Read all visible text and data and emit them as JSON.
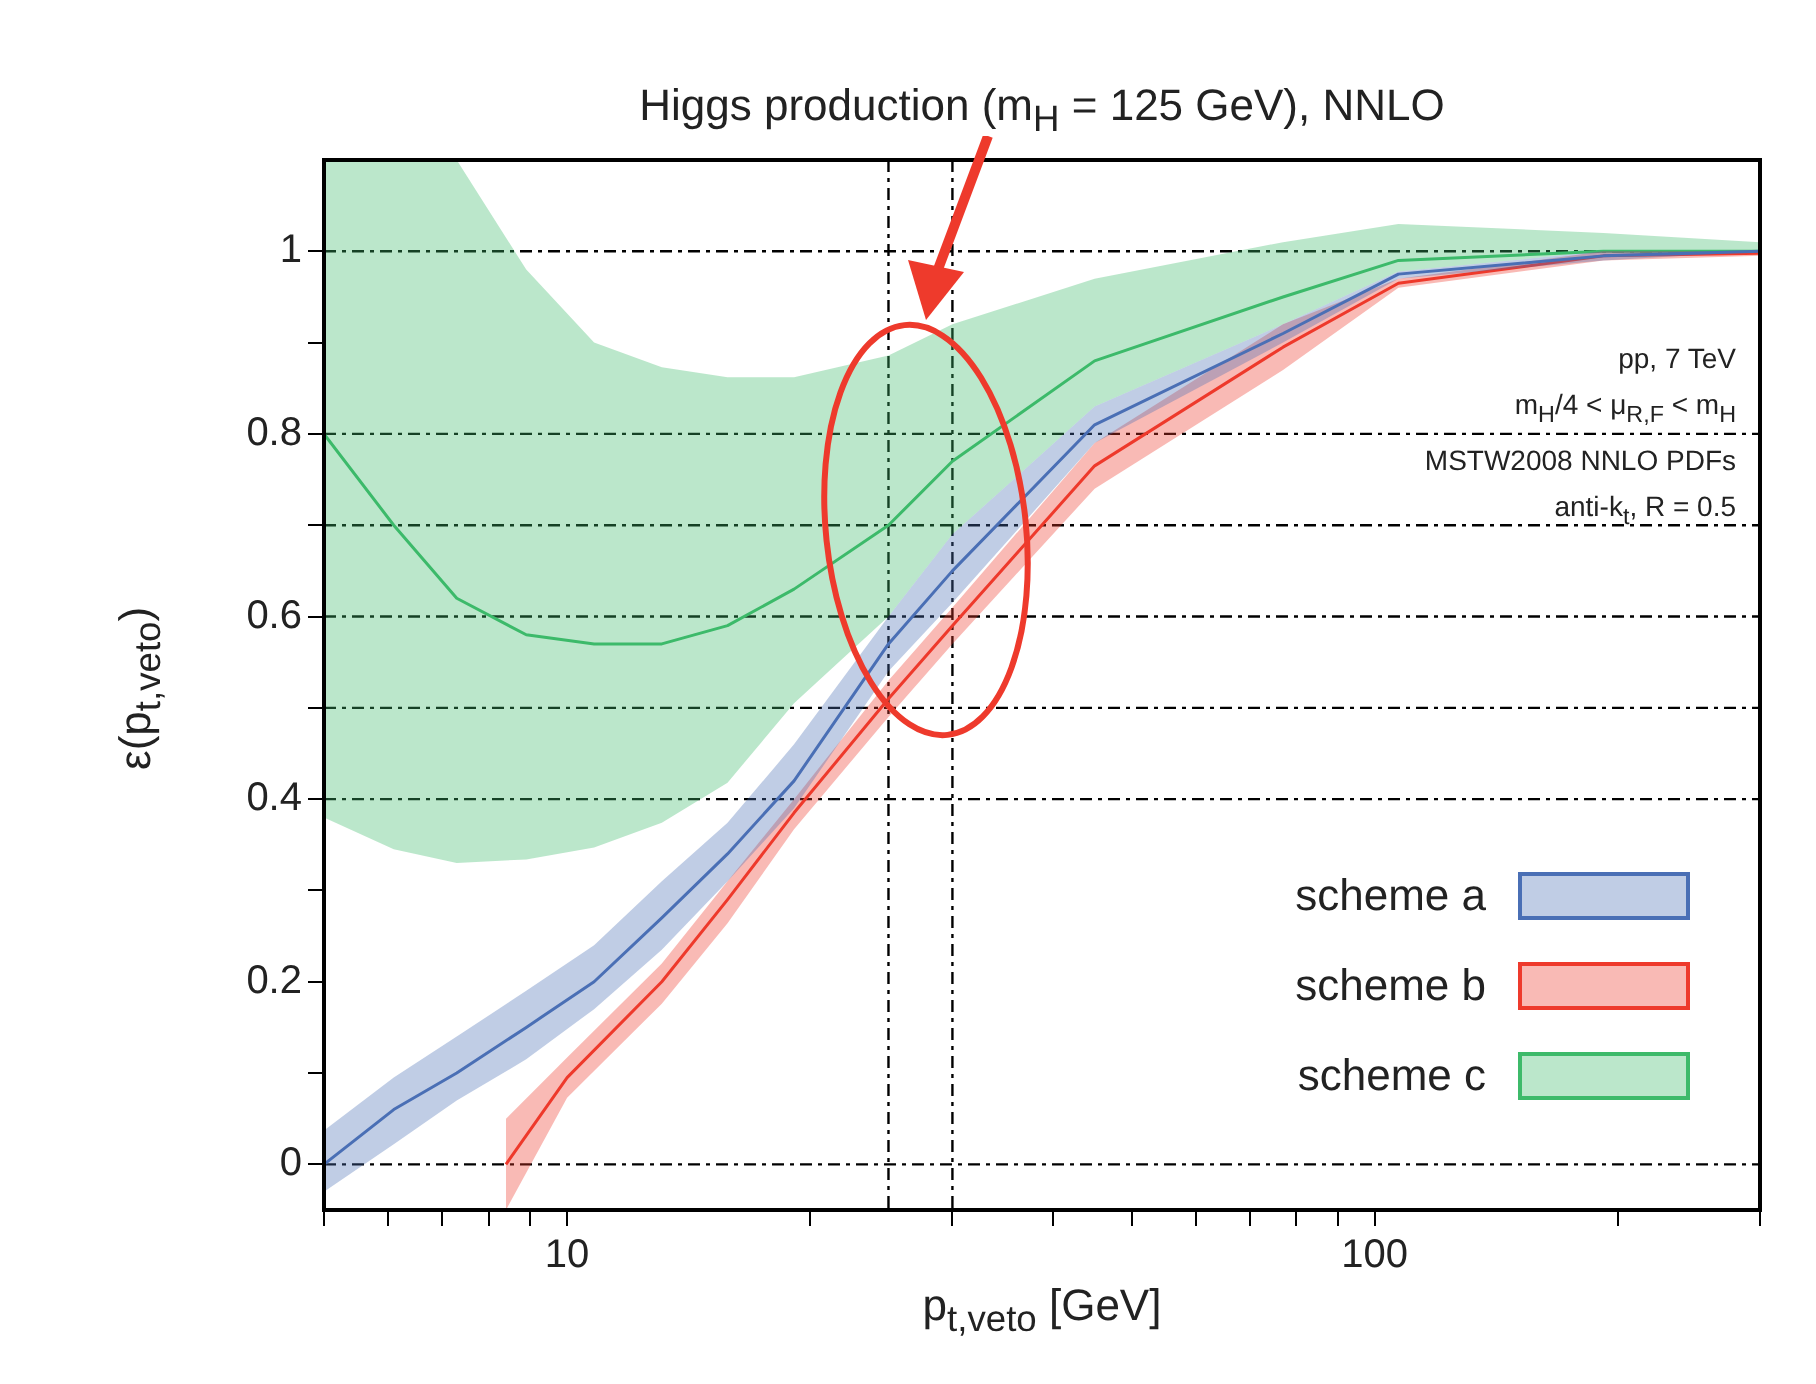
{
  "chart_data": {
    "type": "line",
    "title": "Higgs production (m$_{H}$ = 125 GeV), NNLO",
    "xlabel": "p$_{t,veto}$ [GeV]",
    "ylabel": "ε(p$_{t,veto}$)",
    "annotations": [
      "pp, 7 TeV",
      "m$_{H}$/4 < μ$_{R,F}$ < m$_{H}$",
      "MSTW2008 NNLO PDFs",
      "anti-k$_{t}$, R = 0.5"
    ],
    "log": "x",
    "xlim": [
      5,
      300
    ],
    "ylim": [
      -0.05,
      1.1
    ],
    "xticks": [
      {
        "value": 5,
        "label": null
      },
      {
        "value": 6,
        "label": null
      },
      {
        "value": 7,
        "label": null
      },
      {
        "value": 8,
        "label": null
      },
      {
        "value": 9,
        "label": null
      },
      10,
      {
        "value": 20,
        "label": null
      },
      {
        "value": 30,
        "label": null
      },
      {
        "value": 40,
        "label": null
      },
      {
        "value": 50,
        "label": null
      },
      {
        "value": 60,
        "label": null
      },
      {
        "value": 70,
        "label": null
      },
      {
        "value": 80,
        "label": null
      },
      {
        "value": 90,
        "label": null
      },
      100,
      {
        "value": 200,
        "label": null
      },
      {
        "value": 300,
        "label": null
      }
    ],
    "yticks": [
      0,
      {
        "value": 0.1,
        "label": null
      },
      0.2,
      {
        "value": 0.3,
        "label": null
      },
      0.4,
      {
        "value": 0.5,
        "label": null
      },
      0.6,
      {
        "value": 0.7,
        "label": null
      },
      0.8,
      {
        "value": 0.9,
        "label": null
      },
      1
    ],
    "x": [
      5,
      6.1,
      7.3,
      8.9,
      10.8,
      13.1,
      15.8,
      19.1,
      25,
      30,
      45,
      77,
      107,
      192,
      300
    ],
    "series": [
      {
        "name": "scheme a",
        "color": "#4a6fb5",
        "values": [
          0.0,
          0.06,
          0.1,
          0.15,
          0.2,
          0.27,
          0.34,
          0.42,
          0.57,
          0.65,
          0.81,
          0.91,
          0.975,
          0.995,
          1.0
        ],
        "lower": [
          -0.03,
          0.022,
          0.07,
          0.115,
          0.17,
          0.235,
          0.31,
          0.39,
          0.54,
          0.615,
          0.79,
          0.9,
          0.97,
          0.99,
          1.0
        ],
        "upper": [
          0.037,
          0.095,
          0.14,
          0.19,
          0.24,
          0.31,
          0.374,
          0.46,
          0.6,
          0.69,
          0.83,
          0.92,
          0.978,
          1.0,
          1.0
        ]
      },
      {
        "name": "scheme b",
        "color": "#ee3a2c",
        "x": [
          8.4,
          10,
          13.1,
          15.8,
          19.1,
          25,
          30,
          45,
          77,
          107,
          192,
          300
        ],
        "values": [
          0.0,
          0.095,
          0.2,
          0.29,
          0.385,
          0.51,
          0.59,
          0.765,
          0.895,
          0.965,
          0.995,
          0.998
        ],
        "lower": [
          -0.05,
          0.073,
          0.176,
          0.264,
          0.367,
          0.49,
          0.57,
          0.74,
          0.87,
          0.96,
          0.99,
          0.995
        ],
        "upper": [
          0.05,
          0.117,
          0.22,
          0.31,
          0.4,
          0.53,
          0.61,
          0.79,
          0.92,
          0.97,
          1.0,
          1.0
        ]
      },
      {
        "name": "scheme c",
        "color": "#3dba6a",
        "values": [
          0.8,
          0.7,
          0.62,
          0.58,
          0.57,
          0.57,
          0.59,
          0.63,
          0.7,
          0.77,
          0.88,
          0.95,
          0.99,
          1.0,
          1.0
        ],
        "lower": [
          0.38,
          0.345,
          0.33,
          0.334,
          0.347,
          0.374,
          0.418,
          0.505,
          0.6,
          0.69,
          0.83,
          0.92,
          0.978,
          1.0,
          1.0
        ],
        "upper": [
          1.1,
          1.1,
          1.1,
          0.98,
          0.9,
          0.873,
          0.862,
          0.862,
          0.886,
          0.92,
          0.97,
          1.01,
          1.03,
          1.02,
          1.01
        ]
      }
    ],
    "ref_lines": [
      {
        "axis": "y",
        "value": 0
      },
      {
        "axis": "y",
        "value": 0.4
      },
      {
        "axis": "y",
        "value": 0.5
      },
      {
        "axis": "y",
        "value": 0.6
      },
      {
        "axis": "y",
        "value": 0.7
      },
      {
        "axis": "y",
        "value": 0.8
      },
      {
        "axis": "y",
        "value": 1
      },
      {
        "axis": "x",
        "value": 25
      },
      {
        "axis": "x",
        "value": 30
      }
    ],
    "line_style": "solid",
    "legend": "bottom right"
  }
}
